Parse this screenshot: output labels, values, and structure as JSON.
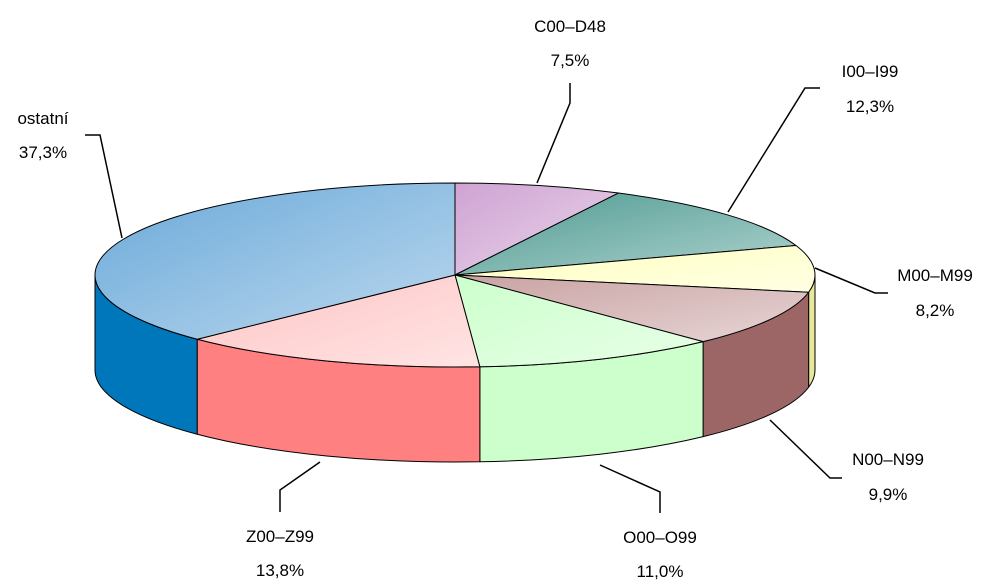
{
  "chart_data": {
    "type": "pie",
    "three_d": true,
    "legend": "none",
    "slices": [
      {
        "name": "C00–D48",
        "value": 7.5,
        "label": "7,5%",
        "color": "#cfa3d3",
        "side_color": "#a87aae"
      },
      {
        "name": "I00–I99",
        "value": 12.3,
        "label": "12,3%",
        "color": "#4d9a91",
        "side_color": "#3a7770"
      },
      {
        "name": "M00–M99",
        "value": 8.2,
        "label": "8,2%",
        "color": "#ffffc0",
        "side_color": "#e8e89a"
      },
      {
        "name": "N00–N99",
        "value": 9.9,
        "label": "9,9%",
        "color": "#c9a2a2",
        "side_color": "#9c6666"
      },
      {
        "name": "O00–O99",
        "value": 11.0,
        "label": "11,0%",
        "color": "#ccffcc",
        "side_color": "#ccffcc"
      },
      {
        "name": "Z00–Z99",
        "value": 13.8,
        "label": "13,8%",
        "color": "#ffc4c4",
        "side_color": "#ff8080"
      },
      {
        "name": "ostatní",
        "value": 37.3,
        "label": "37,3%",
        "color": "#6aa9d9",
        "side_color": "#0077bb"
      }
    ]
  }
}
